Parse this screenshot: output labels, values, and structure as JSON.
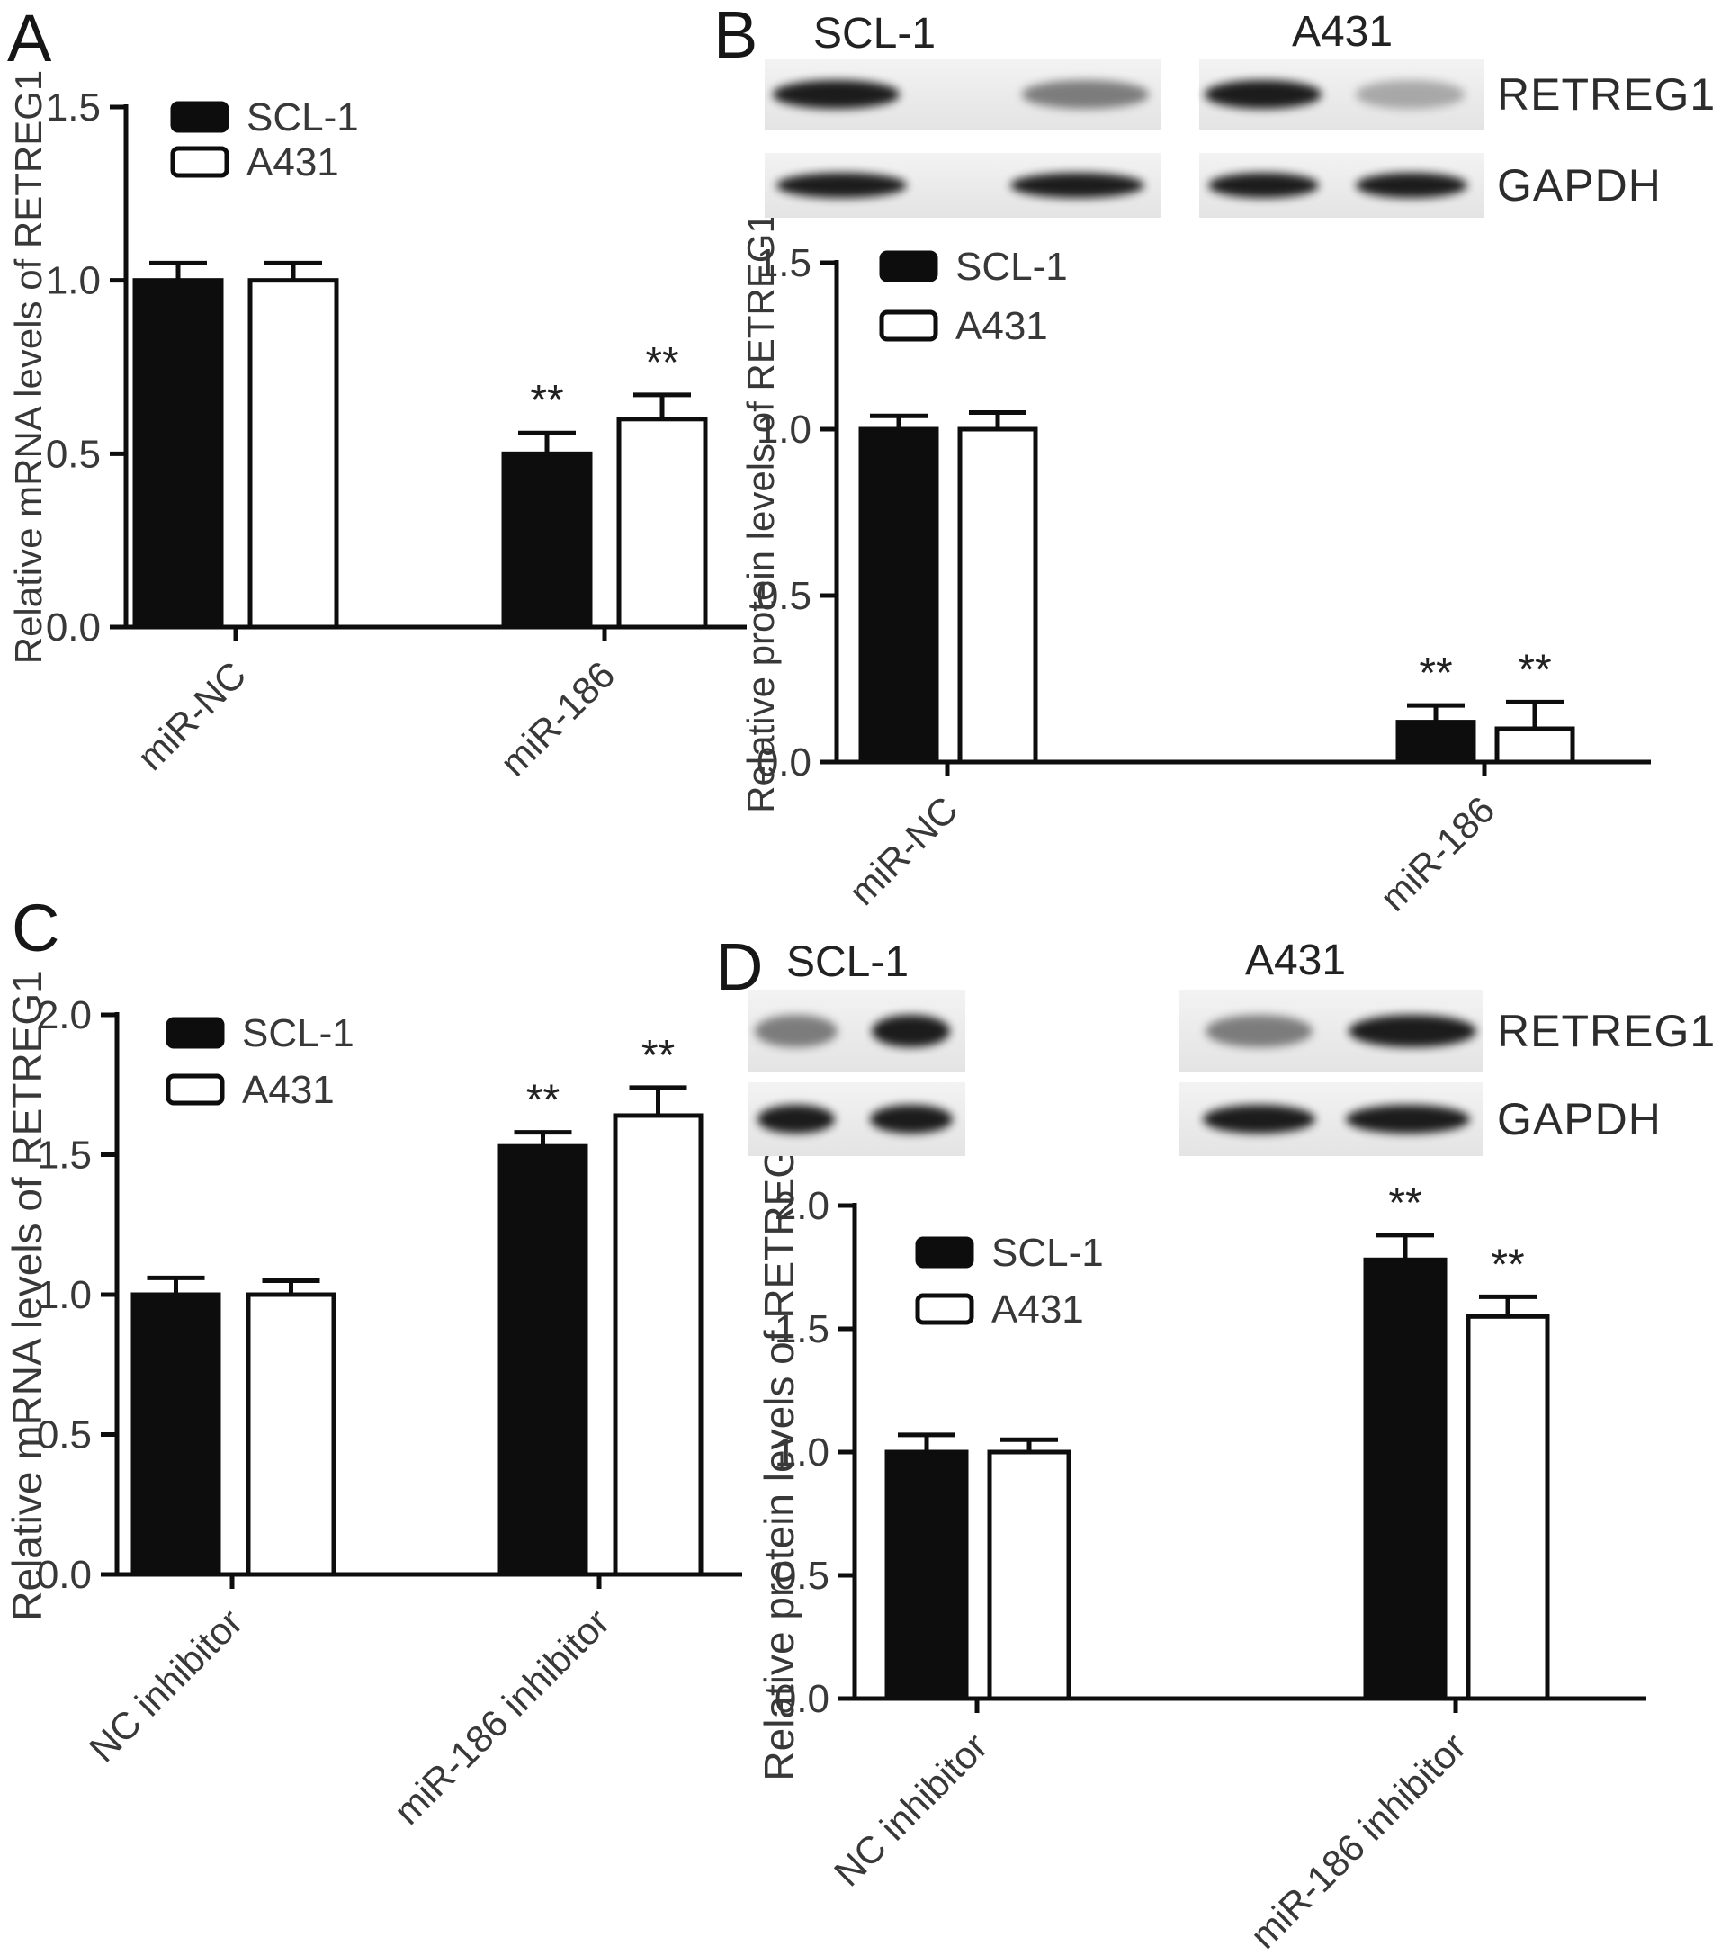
{
  "figure": {
    "panels": [
      {
        "id": "A",
        "label": "A",
        "chart_data": {
          "type": "bar",
          "ylabel": "Relative mRNA levels of RETREG1",
          "ylim": [
            0,
            1.5
          ],
          "yticks": [
            0,
            0.5,
            1,
            1.5
          ],
          "categories": [
            "miR-NC",
            "miR-186"
          ],
          "series": [
            {
              "name": "SCL-1",
              "style": "filled",
              "color": "#0d0d0d",
              "values": [
                1.0,
                0.5
              ],
              "errors": [
                0.05,
                0.06
              ],
              "sig": [
                "",
                "**"
              ]
            },
            {
              "name": "A431",
              "style": "open",
              "color": "#ffffff",
              "values": [
                1.0,
                0.6
              ],
              "errors": [
                0.05,
                0.07
              ],
              "sig": [
                "",
                "**"
              ]
            }
          ],
          "legend_position": "top-left",
          "grid": false
        }
      },
      {
        "id": "B",
        "label": "B",
        "blot": {
          "cell_line_labels": [
            "SCL-1",
            "A431"
          ],
          "rows": [
            {
              "protein": "RETREG1",
              "lanes": [
                [
                  "strong",
                  "weak"
                ],
                [
                  "strong",
                  "faint"
                ]
              ]
            },
            {
              "protein": "GAPDH",
              "lanes": [
                [
                  "strong",
                  "strong"
                ],
                [
                  "strong",
                  "strong"
                ]
              ]
            }
          ]
        },
        "chart_data": {
          "type": "bar",
          "ylabel": "Relative protein levels of RETREG1",
          "ylim": [
            0,
            1.5
          ],
          "yticks": [
            0,
            0.5,
            1,
            1.5
          ],
          "categories": [
            "miR-NC",
            "miR-186"
          ],
          "series": [
            {
              "name": "SCL-1",
              "style": "filled",
              "color": "#0d0d0d",
              "values": [
                1.0,
                0.12
              ],
              "errors": [
                0.04,
                0.05
              ],
              "sig": [
                "",
                "**"
              ]
            },
            {
              "name": "A431",
              "style": "open",
              "color": "#ffffff",
              "values": [
                1.0,
                0.1
              ],
              "errors": [
                0.05,
                0.08
              ],
              "sig": [
                "",
                "**"
              ]
            }
          ],
          "legend_position": "top-left",
          "grid": false
        }
      },
      {
        "id": "C",
        "label": "C",
        "chart_data": {
          "type": "bar",
          "ylabel": "Relative mRNA levels of RETREG1",
          "ylim": [
            0,
            2.0
          ],
          "yticks": [
            0,
            0.5,
            1,
            1.5,
            2
          ],
          "categories": [
            "NC inhibitor",
            "miR-186 inhibitor"
          ],
          "series": [
            {
              "name": "SCL-1",
              "style": "filled",
              "color": "#0d0d0d",
              "values": [
                1.0,
                1.53
              ],
              "errors": [
                0.06,
                0.05
              ],
              "sig": [
                "",
                "**"
              ]
            },
            {
              "name": "A431",
              "style": "open",
              "color": "#ffffff",
              "values": [
                1.0,
                1.64
              ],
              "errors": [
                0.05,
                0.1
              ],
              "sig": [
                "",
                "**"
              ]
            }
          ],
          "legend_position": "top-left",
          "grid": false
        }
      },
      {
        "id": "D",
        "label": "D",
        "blot": {
          "cell_line_labels": [
            "SCL-1",
            "A431"
          ],
          "rows": [
            {
              "protein": "RETREG1",
              "lanes": [
                [
                  "weak",
                  "strong"
                ],
                [
                  "weak",
                  "strong"
                ]
              ]
            },
            {
              "protein": "GAPDH",
              "lanes": [
                [
                  "strong",
                  "strong"
                ],
                [
                  "strong",
                  "strong"
                ]
              ]
            }
          ]
        },
        "chart_data": {
          "type": "bar",
          "ylabel": "Relative protein levels of RETREG1",
          "ylim": [
            0,
            2.0
          ],
          "yticks": [
            0,
            0.5,
            1,
            1.5,
            2
          ],
          "categories": [
            "NC inhibitor",
            "miR-186 inhibitor"
          ],
          "series": [
            {
              "name": "SCL-1",
              "style": "filled",
              "color": "#0d0d0d",
              "values": [
                1.0,
                1.78
              ],
              "errors": [
                0.07,
                0.1
              ],
              "sig": [
                "",
                "**"
              ]
            },
            {
              "name": "A431",
              "style": "open",
              "color": "#ffffff",
              "values": [
                1.0,
                1.55
              ],
              "errors": [
                0.05,
                0.08
              ],
              "sig": [
                "",
                "**"
              ]
            }
          ],
          "legend_position": "top-left",
          "grid": false
        }
      }
    ]
  }
}
